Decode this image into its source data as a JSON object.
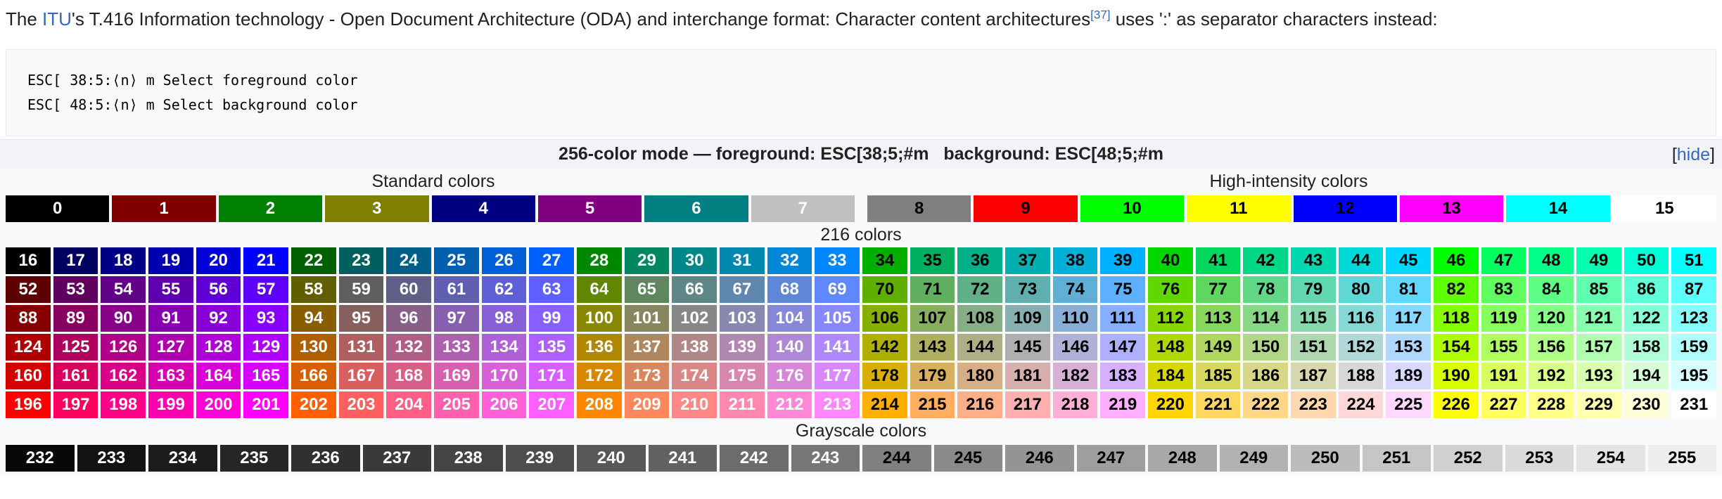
{
  "intro": {
    "t1": "The ",
    "link_text": "ITU",
    "t2": "'s T.416 Information technology - Open Document Architecture (ODA) and interchange format: Character content architectures",
    "ref_text": "[37]",
    "t3": " uses ':' as separator characters instead:"
  },
  "code": {
    "line1": "ESC[ 38:5:⟨n⟩ m Select foreground color",
    "line2": "ESC[ 48:5:⟨n⟩ m Select background color"
  },
  "table": {
    "title": "256-color mode — foreground: ESC[38;5;#m   background: ESC[48;5;#m",
    "hide": {
      "open": "[",
      "label": "hide",
      "close": "]"
    },
    "label_standard": "Standard colors",
    "label_high_intensity": "High-intensity colors",
    "label_216": "216 colors",
    "label_grayscale": "Grayscale colors"
  },
  "palette": {
    "standard": [
      [
        0,
        "#000000",
        "#FFF"
      ],
      [
        1,
        "#800000",
        "#FFF"
      ],
      [
        2,
        "#008000",
        "#FFF"
      ],
      [
        3,
        "#808000",
        "#FFF"
      ],
      [
        4,
        "#000080",
        "#FFF"
      ],
      [
        5,
        "#800080",
        "#FFF"
      ],
      [
        6,
        "#008080",
        "#FFF"
      ],
      [
        7,
        "#C0C0C0",
        "#FFF"
      ]
    ],
    "high_intensity": [
      [
        8,
        "#808080",
        "#000"
      ],
      [
        9,
        "#FF0000",
        "#000"
      ],
      [
        10,
        "#00FF00",
        "#000"
      ],
      [
        11,
        "#FFFF00",
        "#000"
      ],
      [
        12,
        "#0000FF",
        "#000"
      ],
      [
        13,
        "#FF00FF",
        "#000"
      ],
      [
        14,
        "#00FFFF",
        "#000"
      ],
      [
        15,
        "#FFFFFF",
        "#000"
      ]
    ],
    "cube": [
      [
        [
          16,
          "#000000",
          "#FFF"
        ],
        [
          17,
          "#00005F",
          "#FFF"
        ],
        [
          18,
          "#000087",
          "#FFF"
        ],
        [
          19,
          "#0000AF",
          "#FFF"
        ],
        [
          20,
          "#0000D7",
          "#FFF"
        ],
        [
          21,
          "#0000FF",
          "#FFF"
        ],
        [
          22,
          "#005F00",
          "#FFF"
        ],
        [
          23,
          "#005F5F",
          "#FFF"
        ],
        [
          24,
          "#005F87",
          "#FFF"
        ],
        [
          25,
          "#005FAF",
          "#FFF"
        ],
        [
          26,
          "#005FD7",
          "#FFF"
        ],
        [
          27,
          "#005FFF",
          "#FFF"
        ],
        [
          28,
          "#008700",
          "#FFF"
        ],
        [
          29,
          "#00875F",
          "#FFF"
        ],
        [
          30,
          "#008787",
          "#FFF"
        ],
        [
          31,
          "#0087AF",
          "#FFF"
        ],
        [
          32,
          "#0087D7",
          "#FFF"
        ],
        [
          33,
          "#0087FF",
          "#FFF"
        ],
        [
          34,
          "#00AF00",
          "#000"
        ],
        [
          35,
          "#00AF5F",
          "#000"
        ],
        [
          36,
          "#00AF87",
          "#000"
        ],
        [
          37,
          "#00AFAF",
          "#000"
        ],
        [
          38,
          "#00AFD7",
          "#000"
        ],
        [
          39,
          "#00AFFF",
          "#000"
        ],
        [
          40,
          "#00D700",
          "#000"
        ],
        [
          41,
          "#00D75F",
          "#000"
        ],
        [
          42,
          "#00D787",
          "#000"
        ],
        [
          43,
          "#00D7AF",
          "#000"
        ],
        [
          44,
          "#00D7D7",
          "#000"
        ],
        [
          45,
          "#00D7FF",
          "#000"
        ],
        [
          46,
          "#00FF00",
          "#000"
        ],
        [
          47,
          "#00FF5F",
          "#000"
        ],
        [
          48,
          "#00FF87",
          "#000"
        ],
        [
          49,
          "#00FFAF",
          "#000"
        ],
        [
          50,
          "#00FFD7",
          "#000"
        ],
        [
          51,
          "#00FFFF",
          "#000"
        ]
      ],
      [
        [
          52,
          "#5F0000",
          "#FFF"
        ],
        [
          53,
          "#5F005F",
          "#FFF"
        ],
        [
          54,
          "#5F0087",
          "#FFF"
        ],
        [
          55,
          "#5F00AF",
          "#FFF"
        ],
        [
          56,
          "#5F00D7",
          "#FFF"
        ],
        [
          57,
          "#5F00FF",
          "#FFF"
        ],
        [
          58,
          "#5F5F00",
          "#FFF"
        ],
        [
          59,
          "#5F5F5F",
          "#FFF"
        ],
        [
          60,
          "#5F5F87",
          "#FFF"
        ],
        [
          61,
          "#5F5FAF",
          "#FFF"
        ],
        [
          62,
          "#5F5FD7",
          "#FFF"
        ],
        [
          63,
          "#5F5FFF",
          "#FFF"
        ],
        [
          64,
          "#5F8700",
          "#FFF"
        ],
        [
          65,
          "#5F875F",
          "#FFF"
        ],
        [
          66,
          "#5F8787",
          "#FFF"
        ],
        [
          67,
          "#5F87AF",
          "#FFF"
        ],
        [
          68,
          "#5F87D7",
          "#FFF"
        ],
        [
          69,
          "#5F87FF",
          "#FFF"
        ],
        [
          70,
          "#5FAF00",
          "#000"
        ],
        [
          71,
          "#5FAF5F",
          "#000"
        ],
        [
          72,
          "#5FAF87",
          "#000"
        ],
        [
          73,
          "#5FAFAF",
          "#000"
        ],
        [
          74,
          "#5FAFD7",
          "#000"
        ],
        [
          75,
          "#5FAFFF",
          "#000"
        ],
        [
          76,
          "#5FD700",
          "#000"
        ],
        [
          77,
          "#5FD75F",
          "#000"
        ],
        [
          78,
          "#5FD787",
          "#000"
        ],
        [
          79,
          "#5FD7AF",
          "#000"
        ],
        [
          80,
          "#5FD7D7",
          "#000"
        ],
        [
          81,
          "#5FD7FF",
          "#000"
        ],
        [
          82,
          "#5FFF00",
          "#000"
        ],
        [
          83,
          "#5FFF5F",
          "#000"
        ],
        [
          84,
          "#5FFF87",
          "#000"
        ],
        [
          85,
          "#5FFFAF",
          "#000"
        ],
        [
          86,
          "#5FFFD7",
          "#000"
        ],
        [
          87,
          "#5FFFFF",
          "#000"
        ]
      ],
      [
        [
          88,
          "#870000",
          "#FFF"
        ],
        [
          89,
          "#87005F",
          "#FFF"
        ],
        [
          90,
          "#870087",
          "#FFF"
        ],
        [
          91,
          "#8700AF",
          "#FFF"
        ],
        [
          92,
          "#8700D7",
          "#FFF"
        ],
        [
          93,
          "#8700FF",
          "#FFF"
        ],
        [
          94,
          "#875F00",
          "#FFF"
        ],
        [
          95,
          "#875F5F",
          "#FFF"
        ],
        [
          96,
          "#875F87",
          "#FFF"
        ],
        [
          97,
          "#875FAF",
          "#FFF"
        ],
        [
          98,
          "#875FD7",
          "#FFF"
        ],
        [
          99,
          "#875FFF",
          "#FFF"
        ],
        [
          100,
          "#878700",
          "#FFF"
        ],
        [
          101,
          "#87875F",
          "#FFF"
        ],
        [
          102,
          "#878787",
          "#FFF"
        ],
        [
          103,
          "#8787AF",
          "#FFF"
        ],
        [
          104,
          "#8787D7",
          "#FFF"
        ],
        [
          105,
          "#8787FF",
          "#FFF"
        ],
        [
          106,
          "#87AF00",
          "#000"
        ],
        [
          107,
          "#87AF5F",
          "#000"
        ],
        [
          108,
          "#87AF87",
          "#000"
        ],
        [
          109,
          "#87AFAF",
          "#000"
        ],
        [
          110,
          "#87AFD7",
          "#000"
        ],
        [
          111,
          "#87AFFF",
          "#000"
        ],
        [
          112,
          "#87D700",
          "#000"
        ],
        [
          113,
          "#87D75F",
          "#000"
        ],
        [
          114,
          "#87D787",
          "#000"
        ],
        [
          115,
          "#87D7AF",
          "#000"
        ],
        [
          116,
          "#87D7D7",
          "#000"
        ],
        [
          117,
          "#87D7FF",
          "#000"
        ],
        [
          118,
          "#87FF00",
          "#000"
        ],
        [
          119,
          "#87FF5F",
          "#000"
        ],
        [
          120,
          "#87FF87",
          "#000"
        ],
        [
          121,
          "#87FFAF",
          "#000"
        ],
        [
          122,
          "#87FFD7",
          "#000"
        ],
        [
          123,
          "#87FFFF",
          "#000"
        ]
      ],
      [
        [
          124,
          "#AF0000",
          "#FFF"
        ],
        [
          125,
          "#AF005F",
          "#FFF"
        ],
        [
          126,
          "#AF0087",
          "#FFF"
        ],
        [
          127,
          "#AF00AF",
          "#FFF"
        ],
        [
          128,
          "#AF00D7",
          "#FFF"
        ],
        [
          129,
          "#AF00FF",
          "#FFF"
        ],
        [
          130,
          "#AF5F00",
          "#FFF"
        ],
        [
          131,
          "#AF5F5F",
          "#FFF"
        ],
        [
          132,
          "#AF5F87",
          "#FFF"
        ],
        [
          133,
          "#AF5FAF",
          "#FFF"
        ],
        [
          134,
          "#AF5FD7",
          "#FFF"
        ],
        [
          135,
          "#AF5FFF",
          "#FFF"
        ],
        [
          136,
          "#AF8700",
          "#FFF"
        ],
        [
          137,
          "#AF875F",
          "#FFF"
        ],
        [
          138,
          "#AF8787",
          "#FFF"
        ],
        [
          139,
          "#AF87AF",
          "#FFF"
        ],
        [
          140,
          "#AF87D7",
          "#FFF"
        ],
        [
          141,
          "#AF87FF",
          "#FFF"
        ],
        [
          142,
          "#AFAF00",
          "#000"
        ],
        [
          143,
          "#AFAF5F",
          "#000"
        ],
        [
          144,
          "#AFAF87",
          "#000"
        ],
        [
          145,
          "#AFAFAF",
          "#000"
        ],
        [
          146,
          "#AFAFD7",
          "#000"
        ],
        [
          147,
          "#AFAFFF",
          "#000"
        ],
        [
          148,
          "#AFD700",
          "#000"
        ],
        [
          149,
          "#AFD75F",
          "#000"
        ],
        [
          150,
          "#AFD787",
          "#000"
        ],
        [
          151,
          "#AFD7AF",
          "#000"
        ],
        [
          152,
          "#AFD7D7",
          "#000"
        ],
        [
          153,
          "#AFD7FF",
          "#000"
        ],
        [
          154,
          "#AFFF00",
          "#000"
        ],
        [
          155,
          "#AFFF5F",
          "#000"
        ],
        [
          156,
          "#AFFF87",
          "#000"
        ],
        [
          157,
          "#AFFFAF",
          "#000"
        ],
        [
          158,
          "#AFFFD7",
          "#000"
        ],
        [
          159,
          "#AFFFFF",
          "#000"
        ]
      ],
      [
        [
          160,
          "#D70000",
          "#FFF"
        ],
        [
          161,
          "#D7005F",
          "#FFF"
        ],
        [
          162,
          "#D70087",
          "#FFF"
        ],
        [
          163,
          "#D700AF",
          "#FFF"
        ],
        [
          164,
          "#D700D7",
          "#FFF"
        ],
        [
          165,
          "#D700FF",
          "#FFF"
        ],
        [
          166,
          "#D75F00",
          "#FFF"
        ],
        [
          167,
          "#D75F5F",
          "#FFF"
        ],
        [
          168,
          "#D75F87",
          "#FFF"
        ],
        [
          169,
          "#D75FAF",
          "#FFF"
        ],
        [
          170,
          "#D75FD7",
          "#FFF"
        ],
        [
          171,
          "#D75FFF",
          "#FFF"
        ],
        [
          172,
          "#D78700",
          "#FFF"
        ],
        [
          173,
          "#D7875F",
          "#FFF"
        ],
        [
          174,
          "#D78787",
          "#FFF"
        ],
        [
          175,
          "#D787AF",
          "#FFF"
        ],
        [
          176,
          "#D787D7",
          "#FFF"
        ],
        [
          177,
          "#D787FF",
          "#FFF"
        ],
        [
          178,
          "#D7AF00",
          "#000"
        ],
        [
          179,
          "#D7AF5F",
          "#000"
        ],
        [
          180,
          "#D7AF87",
          "#000"
        ],
        [
          181,
          "#D7AFAF",
          "#000"
        ],
        [
          182,
          "#D7AFD7",
          "#000"
        ],
        [
          183,
          "#D7AFFF",
          "#000"
        ],
        [
          184,
          "#D7D700",
          "#000"
        ],
        [
          185,
          "#D7D75F",
          "#000"
        ],
        [
          186,
          "#D7D787",
          "#000"
        ],
        [
          187,
          "#D7D7AF",
          "#000"
        ],
        [
          188,
          "#D7D7D7",
          "#000"
        ],
        [
          189,
          "#D7D7FF",
          "#000"
        ],
        [
          190,
          "#D7FF00",
          "#000"
        ],
        [
          191,
          "#D7FF5F",
          "#000"
        ],
        [
          192,
          "#D7FF87",
          "#000"
        ],
        [
          193,
          "#D7FFAF",
          "#000"
        ],
        [
          194,
          "#D7FFD7",
          "#000"
        ],
        [
          195,
          "#D7FFFF",
          "#000"
        ]
      ],
      [
        [
          196,
          "#FF0000",
          "#FFF"
        ],
        [
          197,
          "#FF005F",
          "#FFF"
        ],
        [
          198,
          "#FF0087",
          "#FFF"
        ],
        [
          199,
          "#FF00AF",
          "#FFF"
        ],
        [
          200,
          "#FF00D7",
          "#FFF"
        ],
        [
          201,
          "#FF00FF",
          "#FFF"
        ],
        [
          202,
          "#FF5F00",
          "#FFF"
        ],
        [
          203,
          "#FF5F5F",
          "#FFF"
        ],
        [
          204,
          "#FF5F87",
          "#FFF"
        ],
        [
          205,
          "#FF5FAF",
          "#FFF"
        ],
        [
          206,
          "#FF5FD7",
          "#FFF"
        ],
        [
          207,
          "#FF5FFF",
          "#FFF"
        ],
        [
          208,
          "#FF8700",
          "#FFF"
        ],
        [
          209,
          "#FF875F",
          "#FFF"
        ],
        [
          210,
          "#FF8787",
          "#FFF"
        ],
        [
          211,
          "#FF87AF",
          "#FFF"
        ],
        [
          212,
          "#FF87D7",
          "#FFF"
        ],
        [
          213,
          "#FF87FF",
          "#FFF"
        ],
        [
          214,
          "#FFAF00",
          "#000"
        ],
        [
          215,
          "#FFAF5F",
          "#000"
        ],
        [
          216,
          "#FFAF87",
          "#000"
        ],
        [
          217,
          "#FFAFAF",
          "#000"
        ],
        [
          218,
          "#FFAFD7",
          "#000"
        ],
        [
          219,
          "#FFAFFF",
          "#000"
        ],
        [
          220,
          "#FFD700",
          "#000"
        ],
        [
          221,
          "#FFD75F",
          "#000"
        ],
        [
          222,
          "#FFD787",
          "#000"
        ],
        [
          223,
          "#FFD7AF",
          "#000"
        ],
        [
          224,
          "#FFD7D7",
          "#000"
        ],
        [
          225,
          "#FFD7FF",
          "#000"
        ],
        [
          226,
          "#FFFF00",
          "#000"
        ],
        [
          227,
          "#FFFF5F",
          "#000"
        ],
        [
          228,
          "#FFFF87",
          "#000"
        ],
        [
          229,
          "#FFFFAF",
          "#000"
        ],
        [
          230,
          "#FFFFD7",
          "#000"
        ],
        [
          231,
          "#FFFFFF",
          "#000"
        ]
      ]
    ],
    "grayscale": [
      [
        232,
        "#080808",
        "#FFF"
      ],
      [
        233,
        "#121212",
        "#FFF"
      ],
      [
        234,
        "#1C1C1C",
        "#FFF"
      ],
      [
        235,
        "#262626",
        "#FFF"
      ],
      [
        236,
        "#303030",
        "#FFF"
      ],
      [
        237,
        "#3A3A3A",
        "#FFF"
      ],
      [
        238,
        "#444444",
        "#FFF"
      ],
      [
        239,
        "#4E4E4E",
        "#FFF"
      ],
      [
        240,
        "#585858",
        "#FFF"
      ],
      [
        241,
        "#626262",
        "#FFF"
      ],
      [
        242,
        "#6C6C6C",
        "#FFF"
      ],
      [
        243,
        "#767676",
        "#FFF"
      ],
      [
        244,
        "#808080",
        "#000"
      ],
      [
        245,
        "#8A8A8A",
        "#000"
      ],
      [
        246,
        "#949494",
        "#000"
      ],
      [
        247,
        "#9E9E9E",
        "#000"
      ],
      [
        248,
        "#A8A8A8",
        "#000"
      ],
      [
        249,
        "#B2B2B2",
        "#000"
      ],
      [
        250,
        "#BCBCBC",
        "#000"
      ],
      [
        251,
        "#C6C6C6",
        "#000"
      ],
      [
        252,
        "#D0D0D0",
        "#000"
      ],
      [
        253,
        "#DADADA",
        "#000"
      ],
      [
        254,
        "#E4E4E4",
        "#000"
      ],
      [
        255,
        "#EEEEEE",
        "#000"
      ]
    ]
  }
}
